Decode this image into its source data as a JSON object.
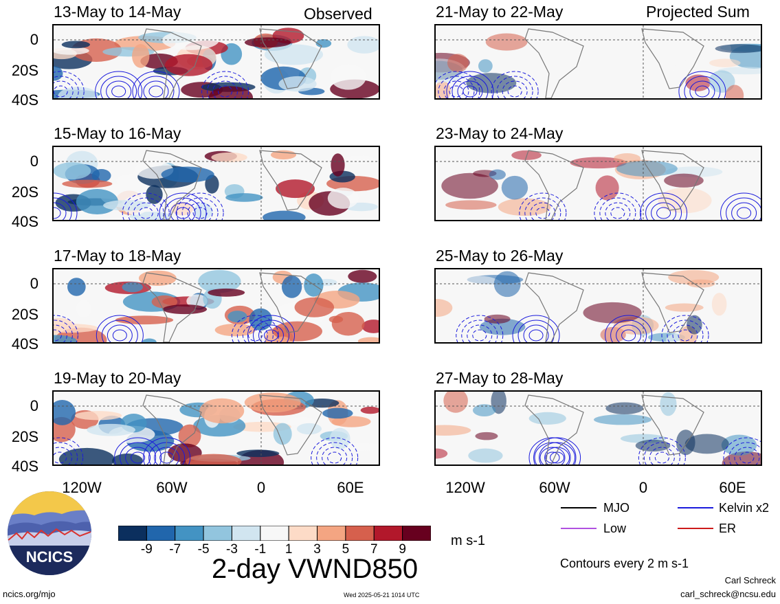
{
  "figure": {
    "title": "2-day VWND850",
    "units": "m s-1",
    "contour_note": "Contours every 2 m s-1",
    "tag_left": "Observed",
    "tag_right": "Projected Sum",
    "logo_text": "NCICS",
    "site": "ncics.org/mjo",
    "timestamp": "Wed 2025-05-21 1014 UTC",
    "author": "Carl Schreck",
    "email": "carl_schreck@ncsu.edu"
  },
  "legend": {
    "items": [
      {
        "label": "MJO",
        "color": "#000000",
        "style": "solid"
      },
      {
        "label": "Kelvin x2",
        "color": "#1a1adc",
        "style": "solid"
      },
      {
        "label": "Low",
        "color": "#b050e0",
        "style": "solid"
      },
      {
        "label": "ER",
        "color": "#cc1a1a",
        "style": "solid"
      }
    ]
  },
  "chart_data": {
    "type": "heatmap",
    "variable": "VWND850",
    "x_ticks": [
      "120W",
      "60W",
      "0",
      "60E"
    ],
    "y_ticks": [
      "0",
      "20S",
      "40S"
    ],
    "ylim": [
      "40S",
      "10N"
    ],
    "panels": [
      {
        "column": "Observed",
        "period": "13-May to 14-May"
      },
      {
        "column": "Observed",
        "period": "15-May to 16-May"
      },
      {
        "column": "Observed",
        "period": "17-May to 18-May"
      },
      {
        "column": "Observed",
        "period": "19-May to 20-May"
      },
      {
        "column": "Projected Sum",
        "period": "21-May to 22-May"
      },
      {
        "column": "Projected Sum",
        "period": "23-May to 24-May"
      },
      {
        "column": "Projected Sum",
        "period": "25-May to 26-May"
      },
      {
        "column": "Projected Sum",
        "period": "27-May to 28-May"
      }
    ],
    "colorbar": {
      "tick_labels": [
        "-9",
        "-7",
        "-5",
        "-3",
        "-1",
        "1",
        "3",
        "5",
        "7",
        "9"
      ],
      "colors": [
        "#0b2f5e",
        "#2166ac",
        "#4393c3",
        "#92c5de",
        "#d1e5f0",
        "#f7f7f7",
        "#fddbc7",
        "#f4a582",
        "#d6604d",
        "#b2182b",
        "#67001f"
      ]
    }
  }
}
